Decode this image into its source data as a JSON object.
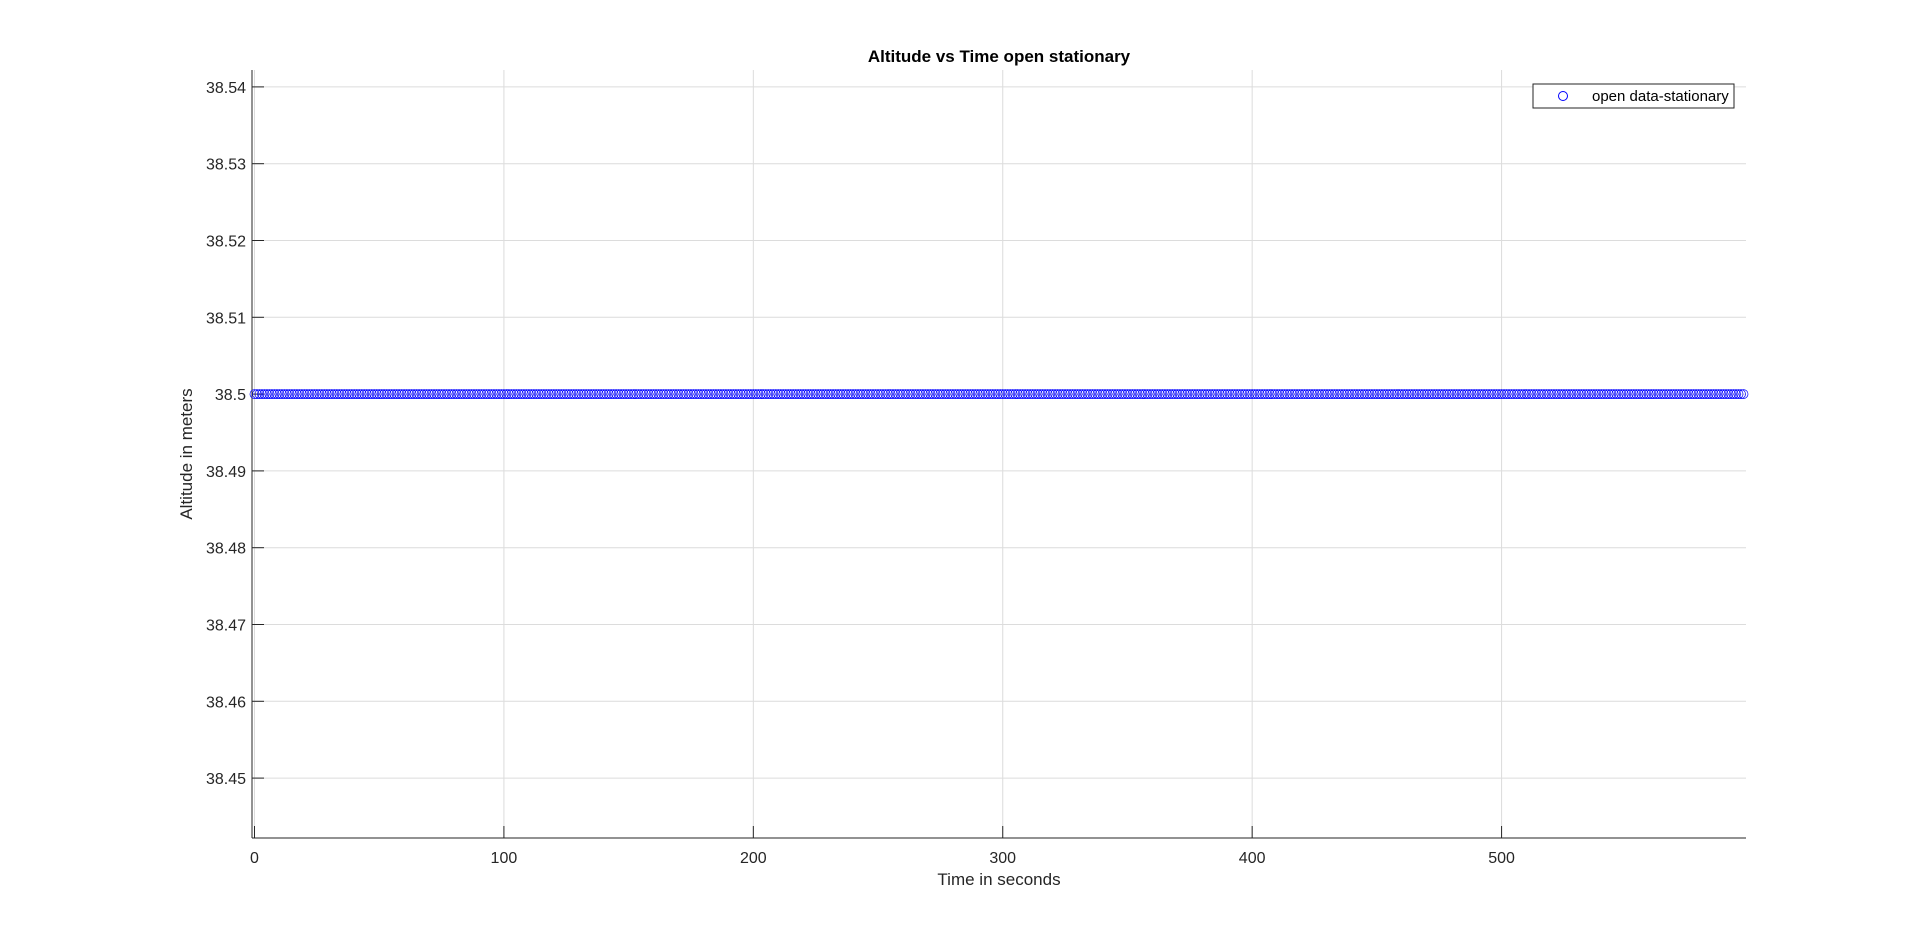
{
  "chart_data": {
    "type": "scatter",
    "title": "Altitude vs Time open stationary",
    "xlabel": "Time in seconds",
    "ylabel": "Altitude in meters",
    "xlim": [
      -1,
      598
    ],
    "ylim": [
      38.4422,
      38.5422
    ],
    "xticks": [
      0,
      100,
      200,
      300,
      400,
      500
    ],
    "xtick_labels": [
      "0",
      "100",
      "200",
      "300",
      "400",
      "500"
    ],
    "yticks": [
      38.45,
      38.46,
      38.47,
      38.48,
      38.49,
      38.5,
      38.51,
      38.52,
      38.53,
      38.54
    ],
    "ytick_labels": [
      "38.45",
      "38.46",
      "38.47",
      "38.48",
      "38.49",
      "38.5",
      "38.51",
      "38.52",
      "38.53",
      "38.54"
    ],
    "grid": true,
    "legend_position": "top-right",
    "series": [
      {
        "name": "open data-stationary",
        "marker": "circle",
        "color": "#0000ff",
        "x_start": 0,
        "x_end": 597,
        "x_step": 1,
        "y_constant": 38.5
      }
    ]
  }
}
